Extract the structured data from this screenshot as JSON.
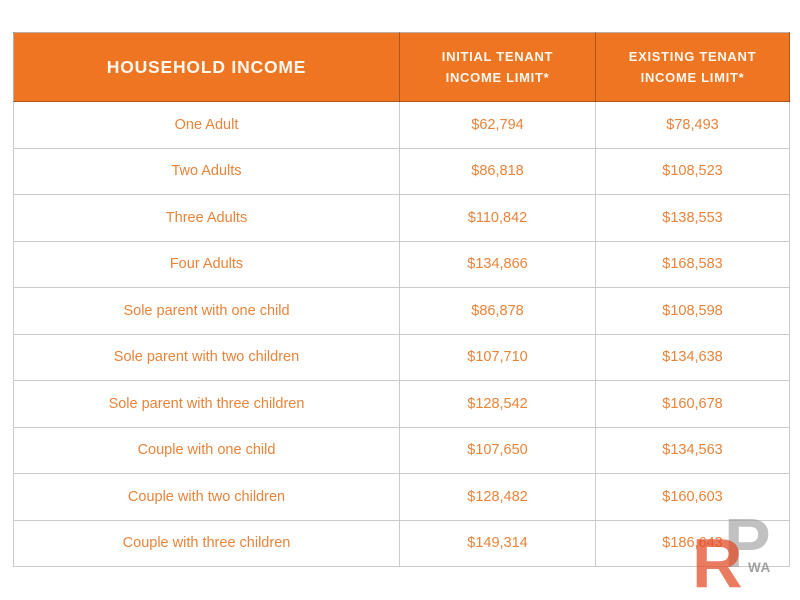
{
  "chart_data": {
    "type": "table",
    "title": "",
    "columns": [
      "HOUSEHOLD INCOME",
      "INITIAL TENANT INCOME LIMIT*",
      "EXISTING TENANT INCOME LIMIT*"
    ],
    "rows": [
      [
        "One Adult",
        "$62,794",
        "$78,493"
      ],
      [
        "Two Adults",
        "$86,818",
        "$108,523"
      ],
      [
        "Three Adults",
        "$110,842",
        "$138,553"
      ],
      [
        "Four Adults",
        "$134,866",
        "$168,583"
      ],
      [
        "Sole parent with one child",
        "$86,878",
        "$108,598"
      ],
      [
        "Sole parent with two children",
        "$107,710",
        "$134,638"
      ],
      [
        "Sole parent with three children",
        "$128,542",
        "$160,678"
      ],
      [
        "Couple with one child",
        "$107,650",
        "$134,563"
      ],
      [
        "Couple with two children",
        "$128,482",
        "$160,603"
      ],
      [
        "Couple with three children",
        "$149,314",
        "$186,643"
      ]
    ]
  },
  "header": {
    "col1": "HOUSEHOLD INCOME",
    "col2": [
      "INITIAL TENANT",
      "INCOME LIMIT*"
    ],
    "col3": [
      "EXISTING TENANT",
      "INCOME LIMIT*"
    ]
  },
  "watermark": {
    "letter_r": "R",
    "letter_p": "P",
    "label": "WA"
  },
  "colors": {
    "header_bg": "#EE7623",
    "header_text": "#FCF7EF",
    "cell_text": "#E8833A",
    "grid_line": "#CBCBCB",
    "outer_border": "#B7B7B7",
    "watermark_orange": "#E04822",
    "watermark_gray": "#9B9B9B"
  }
}
